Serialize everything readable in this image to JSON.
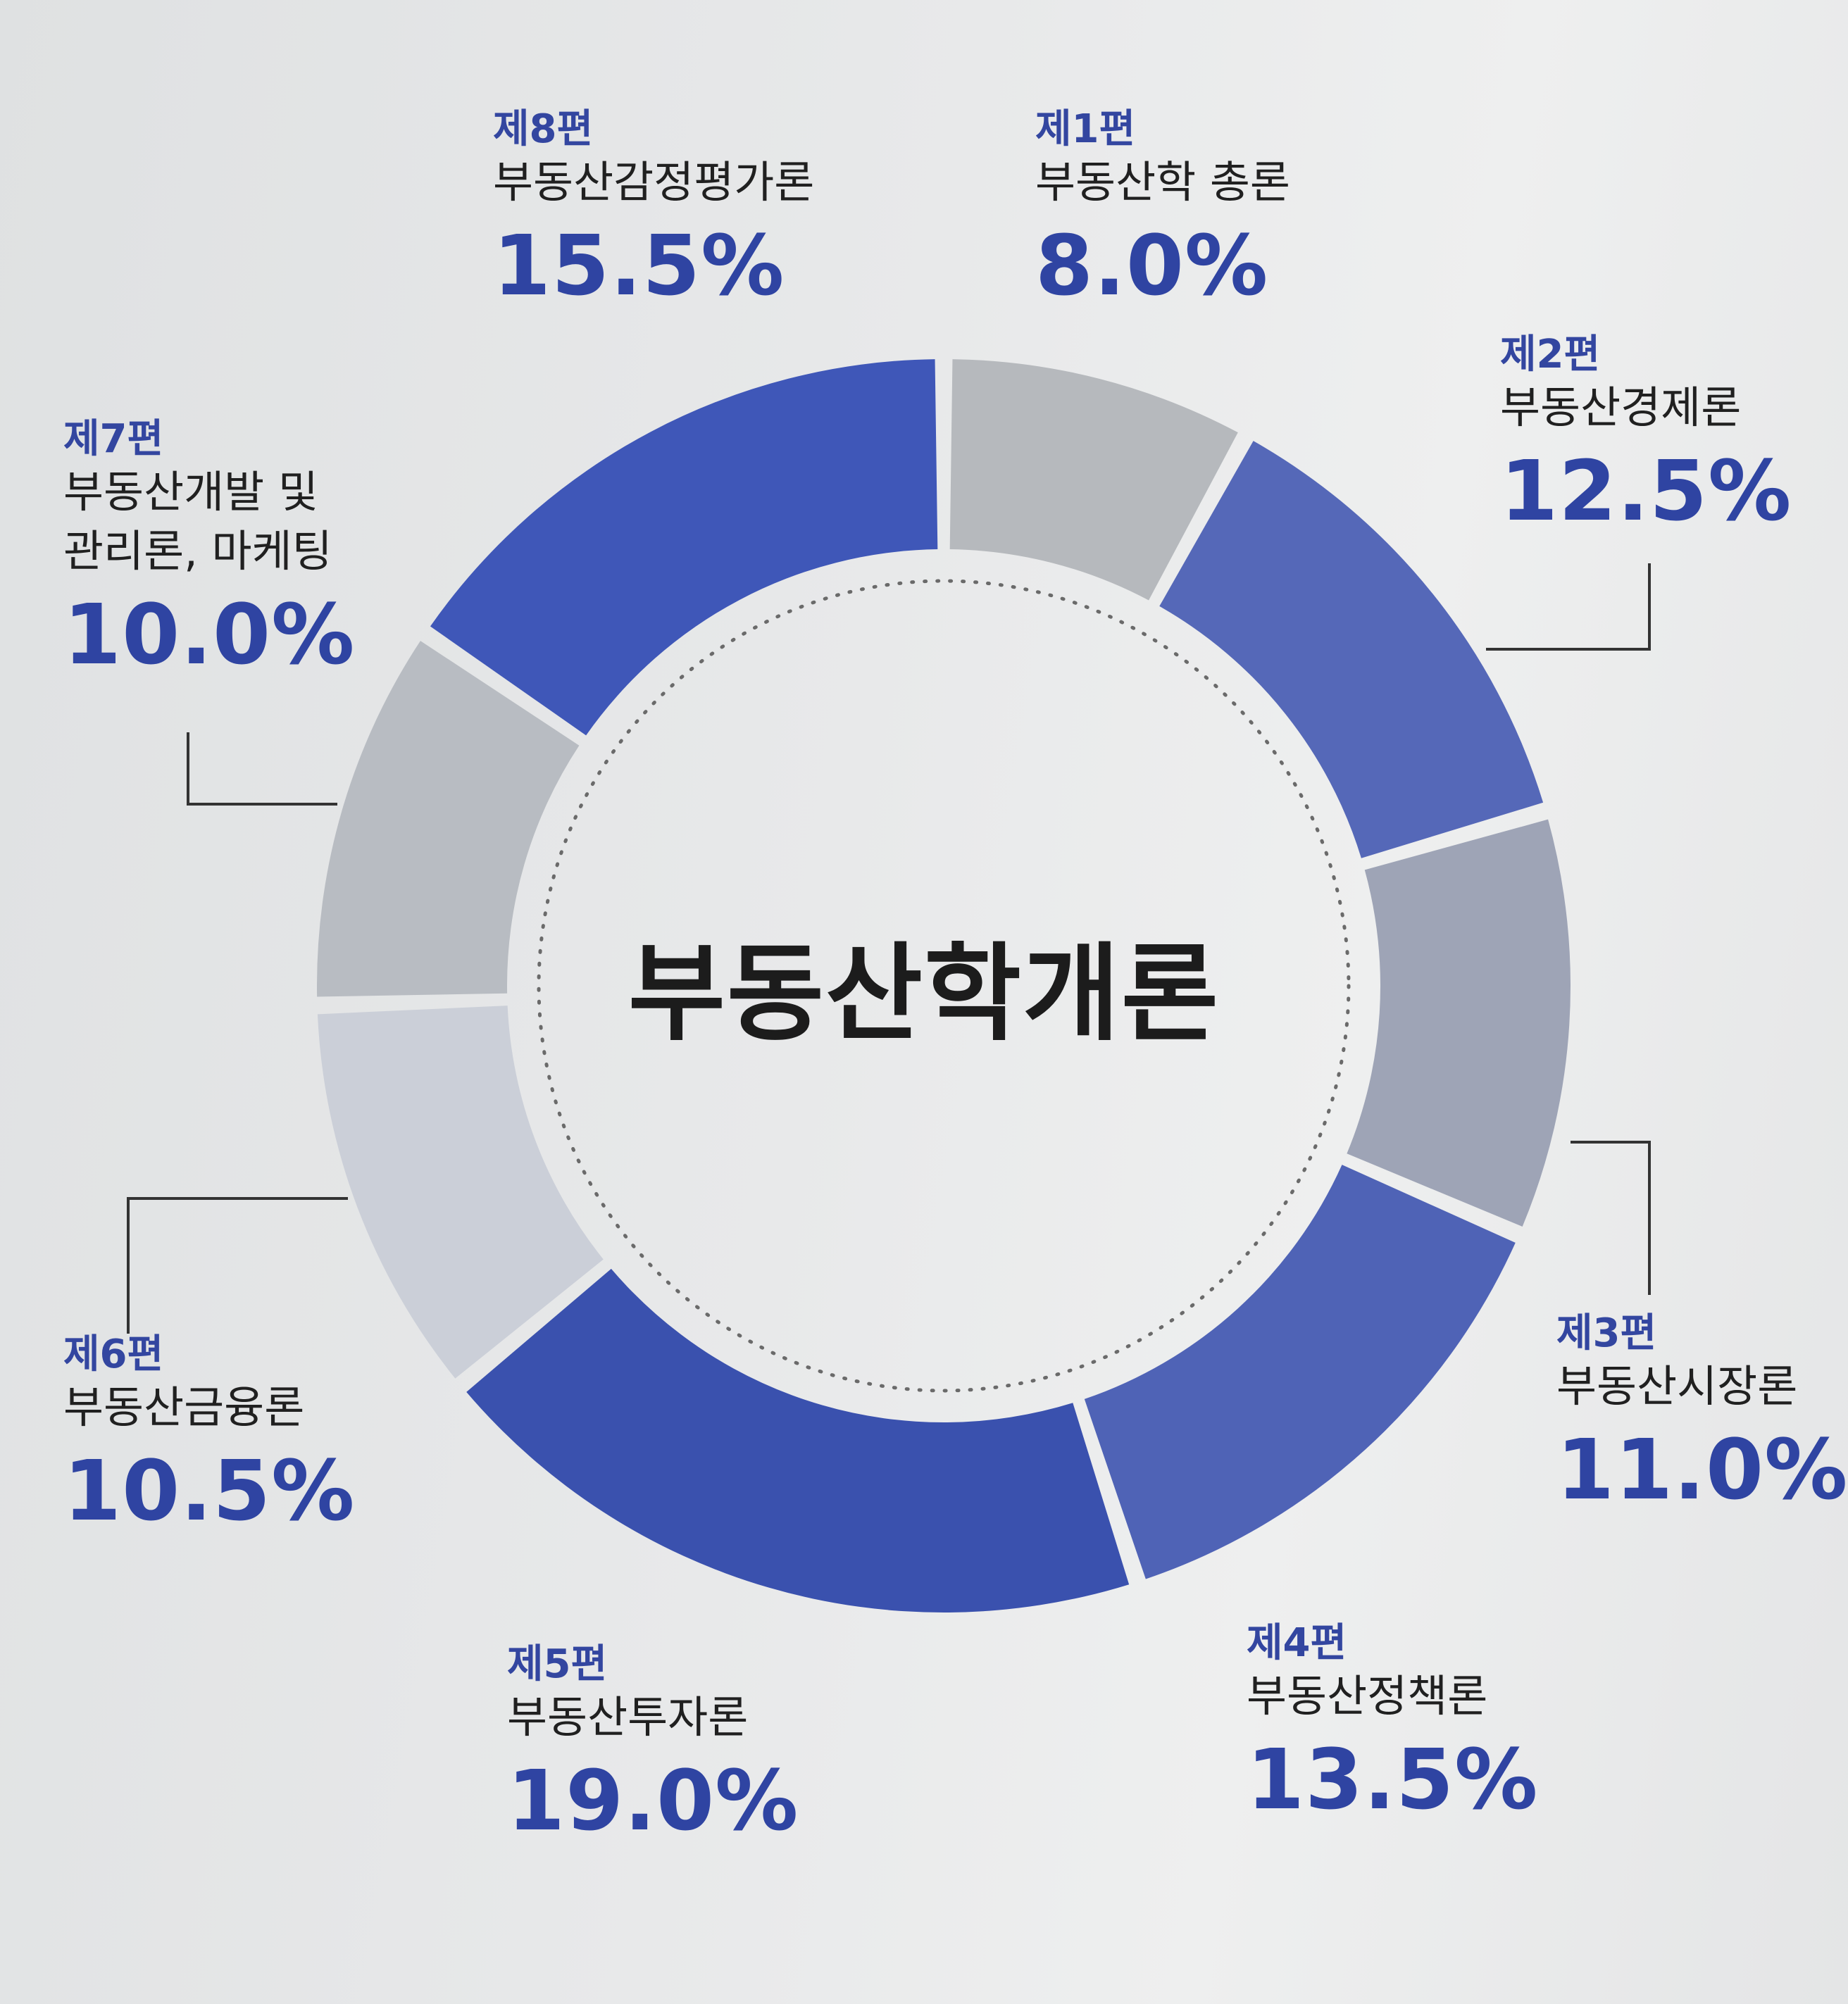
{
  "chart_data": {
    "type": "donut",
    "title": "부동산학개론",
    "categories": [
      "제1편",
      "제2편",
      "제3편",
      "제4편",
      "제5편",
      "제6편",
      "제7편",
      "제8편"
    ],
    "subtitles": [
      "부동산학 총론",
      "부동산경제론",
      "부동산시장론",
      "부동산정책론",
      "부동산투자론",
      "부동산금융론",
      "부동산개발 및\n관리론, 마케팅",
      "부동산감정평가론"
    ],
    "values": [
      8.0,
      12.5,
      11.0,
      13.5,
      19.0,
      10.5,
      10.0,
      15.5
    ],
    "value_labels": [
      "8.0%",
      "12.5%",
      "11.0%",
      "13.5%",
      "19.0%",
      "10.5%",
      "10.0%",
      "15.5%"
    ],
    "unit": "%",
    "colors": [
      "#b6b9bd",
      "#5568b8",
      "#9ea4b6",
      "#4f63b6",
      "#3a51ae",
      "#cbcfd8",
      "#b8bcc2",
      "#3f57b8"
    ]
  }
}
